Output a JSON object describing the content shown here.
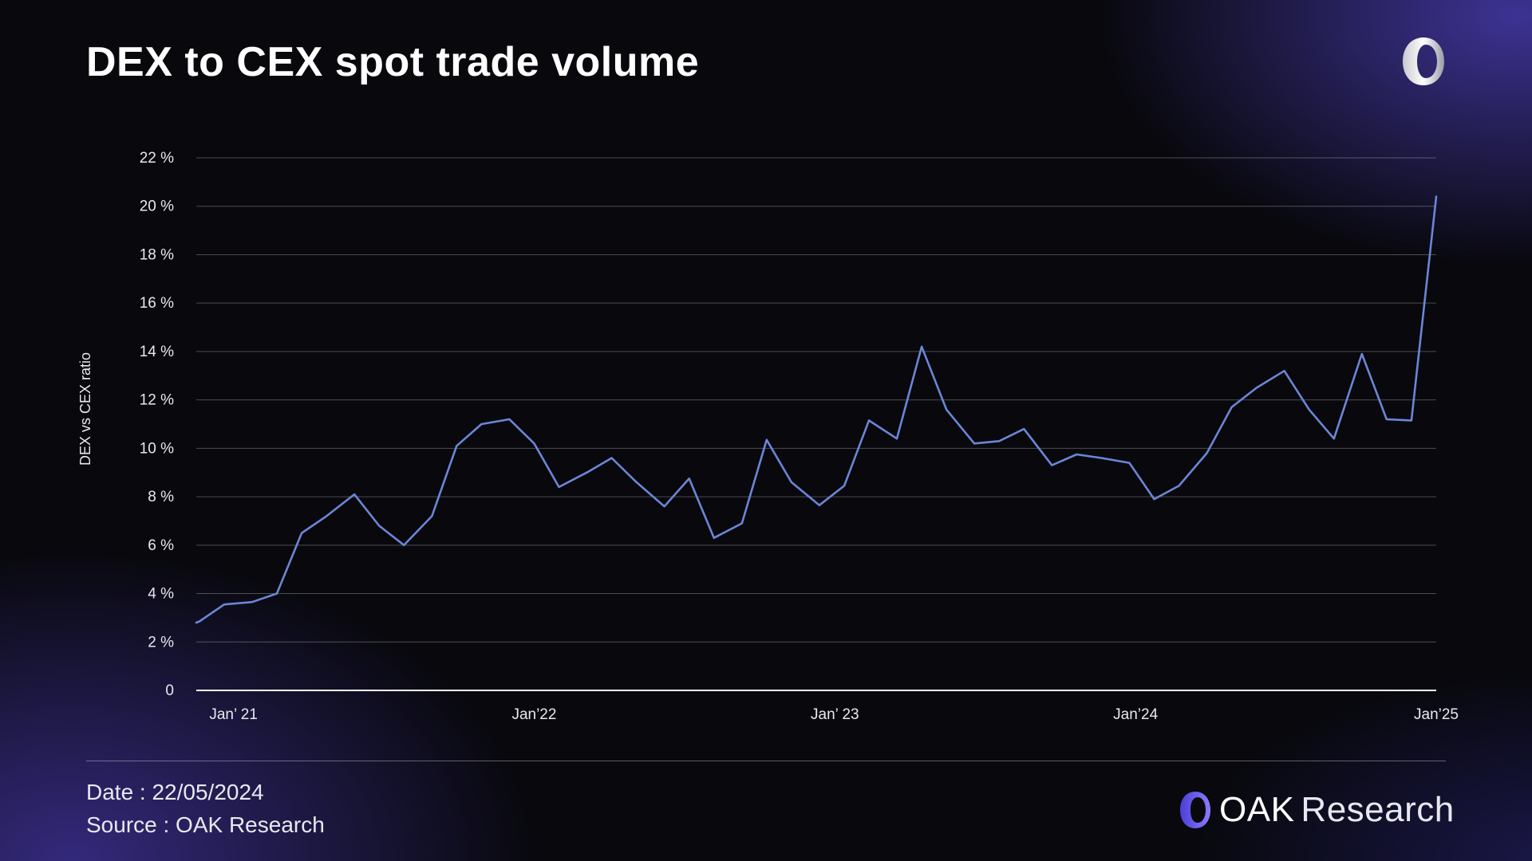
{
  "header": {
    "title": "DEX to CEX spot trade volume"
  },
  "chart_data": {
    "type": "line",
    "title": "DEX to CEX spot trade volume",
    "xlabel": "",
    "ylabel": "DEX vs CEX ratio",
    "ylim": [
      0,
      22
    ],
    "xlim": [
      2021.0,
      2025.0
    ],
    "y_ticks": [
      {
        "value": 0,
        "label": "0"
      },
      {
        "value": 2,
        "label": "2 %"
      },
      {
        "value": 4,
        "label": "4 %"
      },
      {
        "value": 6,
        "label": "6 %"
      },
      {
        "value": 8,
        "label": "8 %"
      },
      {
        "value": 10,
        "label": "10 %"
      },
      {
        "value": 12,
        "label": "12 %"
      },
      {
        "value": 14,
        "label": "14 %"
      },
      {
        "value": 16,
        "label": "16 %"
      },
      {
        "value": 18,
        "label": "18 %"
      },
      {
        "value": 20,
        "label": "20 %"
      },
      {
        "value": 22,
        "label": "22 %"
      }
    ],
    "x_ticks": [
      {
        "value": 2021.12,
        "label": "Jan’ 21"
      },
      {
        "value": 2022.09,
        "label": "Jan’22"
      },
      {
        "value": 2023.06,
        "label": "Jan’ 23"
      },
      {
        "value": 2024.03,
        "label": "Jan’24"
      },
      {
        "value": 2025.0,
        "label": "Jan’25"
      }
    ],
    "grid": true,
    "color": "#6b86d6",
    "series": [
      {
        "name": "DEX vs CEX ratio",
        "x": [
          2021.0,
          2021.01,
          2021.09,
          2021.18,
          2021.26,
          2021.34,
          2021.42,
          2021.51,
          2021.59,
          2021.67,
          2021.76,
          2021.84,
          2021.92,
          2022.01,
          2022.09,
          2022.17,
          2022.26,
          2022.34,
          2022.42,
          2022.51,
          2022.59,
          2022.67,
          2022.76,
          2022.84,
          2022.92,
          2023.01,
          2023.09,
          2023.17,
          2023.26,
          2023.34,
          2023.42,
          2023.51,
          2023.59,
          2023.67,
          2023.76,
          2023.84,
          2023.92,
          2024.01,
          2024.09,
          2024.17,
          2024.26,
          2024.34,
          2024.42,
          2024.51,
          2024.59,
          2024.67,
          2024.76,
          2024.84,
          2024.92,
          2025.0
        ],
        "values": [
          2.8,
          2.85,
          3.55,
          3.65,
          4.0,
          6.5,
          7.2,
          8.1,
          6.8,
          6.0,
          7.2,
          10.1,
          11.0,
          11.2,
          10.2,
          8.4,
          9.0,
          9.6,
          8.6,
          7.6,
          8.75,
          6.3,
          6.9,
          10.35,
          8.6,
          7.65,
          8.45,
          11.15,
          10.4,
          14.2,
          11.6,
          10.2,
          10.3,
          10.8,
          9.3,
          9.75,
          9.6,
          9.4,
          7.9,
          8.45,
          9.8,
          11.7,
          12.5,
          13.2,
          11.6,
          10.4,
          13.9,
          11.2,
          11.15,
          20.4
        ]
      }
    ]
  },
  "footer": {
    "date": "Date : 22/05/2024",
    "source": "Source : OAK Research",
    "brand_name": "OAK",
    "brand_sub": "Research"
  }
}
